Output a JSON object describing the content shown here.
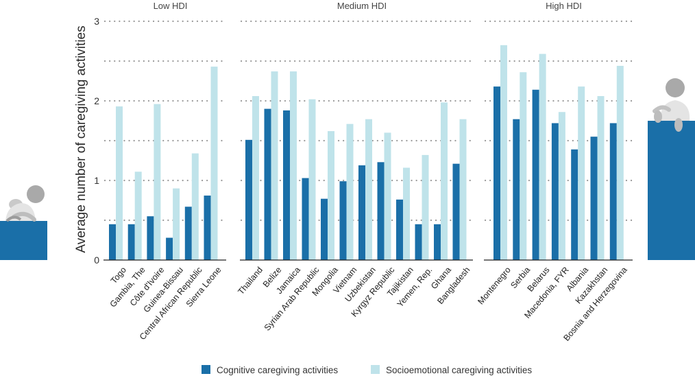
{
  "chart_data": {
    "type": "bar",
    "ylabel": "Average number of caregiving activities",
    "ylim": [
      0,
      3
    ],
    "yticks": [
      0,
      1,
      2,
      3
    ],
    "grid": "horizontal dotted",
    "legend_placement": "bottom",
    "colors": {
      "cognitive": "#1a6fa8",
      "socioemotional": "#bfe3ea"
    },
    "series": [
      {
        "name": "Cognitive caregiving activities"
      },
      {
        "name": "Socioemotional caregiving activities"
      }
    ],
    "groups": [
      {
        "name": "Low HDI",
        "categories": [
          "Togo",
          "Gambia, The",
          "Côte d'Ivoire",
          "Guinea-Bissau",
          "Central African Republic",
          "Sierra Leone"
        ],
        "cognitive": [
          0.45,
          0.45,
          0.55,
          0.28,
          0.67,
          0.81
        ],
        "socioemotional": [
          1.93,
          1.11,
          1.96,
          0.9,
          1.34,
          2.43
        ]
      },
      {
        "name": "Medium HDI",
        "categories": [
          "Thailand",
          "Belize",
          "Jamaica",
          "Syrian Arab Republic",
          "Mongolia",
          "Vietnam",
          "Uzbekistan",
          "Kyrgyz Republic",
          "Tajikistan",
          "Yemen, Rep.",
          "Ghana",
          "Bangladesh"
        ],
        "cognitive": [
          1.51,
          1.9,
          1.88,
          1.03,
          0.77,
          0.99,
          1.19,
          1.23,
          0.76,
          0.45,
          0.45,
          1.21
        ],
        "socioemotional": [
          2.06,
          2.37,
          2.37,
          2.02,
          1.62,
          1.71,
          1.77,
          1.6,
          1.16,
          1.32,
          1.98,
          1.77
        ]
      },
      {
        "name": "High HDI",
        "categories": [
          "Montenegro",
          "Serbia",
          "Belarus",
          "Macedonia, FYR",
          "Albania",
          "Kazakhstan",
          "Bosnia and Herzegovina"
        ],
        "cognitive": [
          2.18,
          1.77,
          2.14,
          1.72,
          1.39,
          1.55,
          1.72
        ],
        "socioemotional": [
          2.7,
          2.36,
          2.59,
          1.86,
          2.18,
          2.06,
          2.44
        ]
      }
    ]
  }
}
